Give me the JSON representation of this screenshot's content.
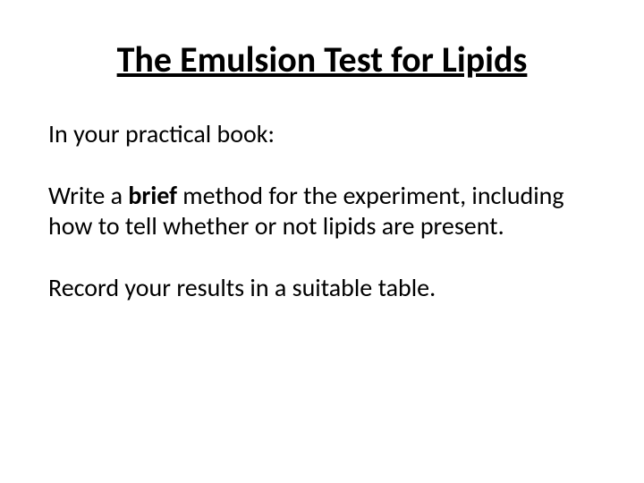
{
  "slide": {
    "title": "The Emulsion Test for Lipids",
    "title_fontsize": 40,
    "title_color": "#000000",
    "title_underline": true,
    "title_fontweight": 700,
    "body_fontsize": 28,
    "body_color": "#000000",
    "background_color": "#ffffff",
    "paragraphs": {
      "p1": "In your practical book:",
      "p2_pre": "Write a ",
      "p2_bold": "brief",
      "p2_post": " method for the experiment, including how to tell whether or not lipids are present.",
      "p3": "Record your results in a suitable table."
    }
  }
}
